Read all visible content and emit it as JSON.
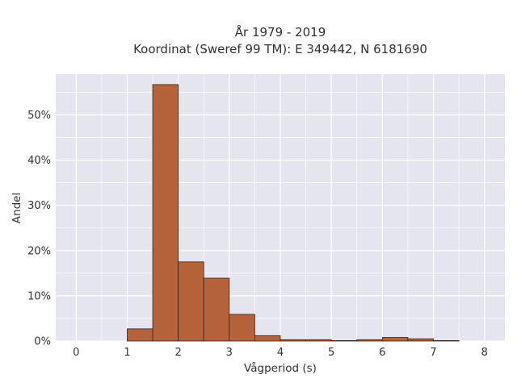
{
  "chart_data": {
    "type": "bar",
    "title_line1": "År 1979 - 2019",
    "title_line2": "Koordinat (Sweref 99 TM): E 349442, N 6181690",
    "xlabel": "Vågperiod (s)",
    "ylabel": "Andel",
    "xlim": [
      -0.4,
      8.4
    ],
    "ylim": [
      0,
      0.59
    ],
    "x_ticks": [
      0,
      1,
      2,
      3,
      4,
      5,
      6,
      7,
      8
    ],
    "y_ticks": [
      0,
      0.1,
      0.2,
      0.3,
      0.4,
      0.5
    ],
    "y_tick_labels": [
      "0%",
      "10%",
      "20%",
      "30%",
      "40%",
      "50%"
    ],
    "bin_width": 0.5,
    "bins": [
      {
        "start": 1.0,
        "value": 0.027
      },
      {
        "start": 1.5,
        "value": 0.567
      },
      {
        "start": 2.0,
        "value": 0.175
      },
      {
        "start": 2.5,
        "value": 0.139
      },
      {
        "start": 3.0,
        "value": 0.059
      },
      {
        "start": 3.5,
        "value": 0.012
      },
      {
        "start": 4.0,
        "value": 0.003
      },
      {
        "start": 4.5,
        "value": 0.003
      },
      {
        "start": 5.0,
        "value": 0.001
      },
      {
        "start": 5.5,
        "value": 0.003
      },
      {
        "start": 6.0,
        "value": 0.008
      },
      {
        "start": 6.5,
        "value": 0.005
      },
      {
        "start": 7.0,
        "value": 0.001
      }
    ],
    "grid": true,
    "colors": {
      "bar_fill": "#b5633a",
      "bar_stroke": "#3b2216",
      "plot_bg": "#e5e5ef",
      "grid": "#ffffff"
    }
  }
}
